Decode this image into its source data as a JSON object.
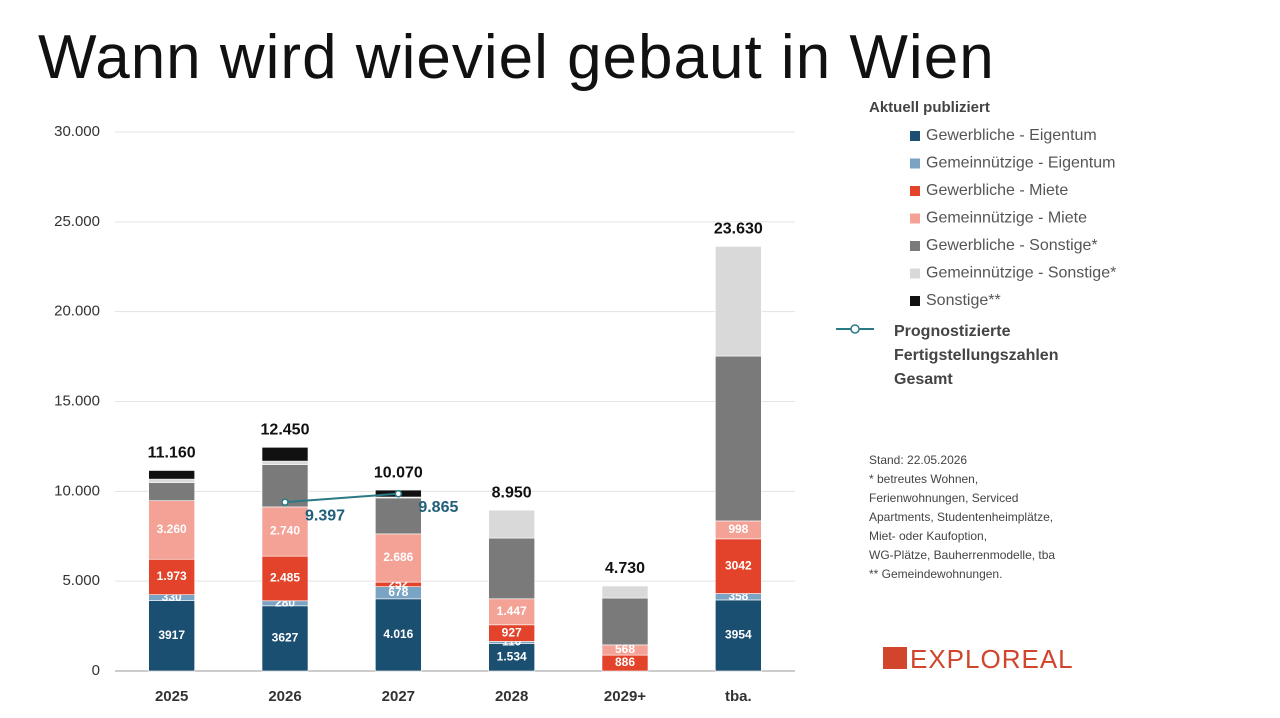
{
  "chart_data": {
    "type": "stacked-bar",
    "title": "Wann wird wieviel gebaut in Wien",
    "legend_title": "Aktuell publiziert",
    "categories": [
      "2025",
      "2026",
      "2027",
      "2028",
      "2029+",
      "tba."
    ],
    "ylim": [
      0,
      30000
    ],
    "yticks": [
      0,
      {
        "value": 5000,
        "label": "5.000"
      },
      {
        "value": 10000,
        "label": "10.000"
      },
      {
        "value": 15000,
        "label": "15.000"
      },
      {
        "value": 20000,
        "label": "20.000"
      },
      {
        "value": 25000,
        "label": "25.000"
      },
      {
        "value": 30000,
        "label": "30.000"
      }
    ],
    "grid": true,
    "series": [
      {
        "name": "Gewerbliche - Eigentum",
        "color": "#1b4f72",
        "values": [
          3917,
          3627,
          4016,
          1534,
          null,
          3954
        ],
        "value_labels": [
          "3917",
          "3627",
          "4.016",
          "1.534",
          null,
          "3954"
        ]
      },
      {
        "name": "Gemeinnützige - Eigentum",
        "color": "#7ba3c4",
        "values": [
          330,
          280,
          678,
          110,
          null,
          358
        ],
        "value_labels": [
          "330",
          "280",
          "678",
          "110",
          null,
          "358"
        ]
      },
      {
        "name": "Gewerbliche - Miete",
        "color": "#e2432a",
        "values": [
          1973,
          2485,
          252,
          927,
          886,
          3042
        ],
        "value_labels": [
          "1.973",
          "2.485",
          "252",
          "927",
          "886",
          "3042"
        ]
      },
      {
        "name": "Gemeinnützige - Miete",
        "color": "#f4a196",
        "values": [
          3260,
          2740,
          2686,
          1447,
          568,
          998
        ],
        "value_labels": [
          "3.260",
          "2.740",
          "2.686",
          "1.447",
          "568",
          "998"
        ]
      },
      {
        "name": "Gewerbliche - Sonstige*",
        "color": "#7a7a7a",
        "values": [
          1000,
          2350,
          2000,
          3383,
          2608,
          9178
        ]
      },
      {
        "name": "Gemeinnützige - Sonstige*",
        "color": "#d9d9d9",
        "values": [
          200,
          200,
          51,
          1549,
          668,
          6100
        ]
      },
      {
        "name": "Sonstige**",
        "color": "#111111",
        "values": [
          480,
          768,
          387,
          null,
          null,
          null
        ]
      }
    ],
    "totals": {
      "values": [
        11160,
        12450,
        10070,
        8950,
        4730,
        23630
      ],
      "value_labels": [
        "11.160",
        "12.450",
        "10.070",
        "8.950",
        "4.730",
        "23.630"
      ]
    },
    "line": {
      "name": "Prognostizierte Fertigstellungszahlen Gesamt",
      "color": "#2a7a86",
      "values": [
        null,
        9397,
        9865,
        null,
        null,
        null
      ],
      "value_labels": [
        null,
        "9.397",
        "9.865",
        null,
        null,
        null
      ]
    },
    "notes": [
      "Stand: 22.05.2026",
      "* betreutes Wohnen,",
      "Ferienwohnungen, Serviced",
      "Apartments, Studentenheimplätze,",
      "Miet- oder Kaufoption,",
      "WG-Plätze, Bauherrenmodelle, tba",
      "** Gemeindewohnungen."
    ],
    "logo": "EXPLOREAL"
  }
}
